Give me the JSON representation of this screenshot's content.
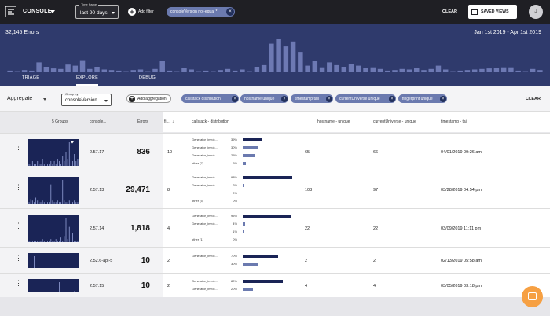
{
  "topbar": {
    "app_name": "CONSOLE",
    "timeframe_label": "Time frame",
    "timeframe_value": "last 90 days",
    "add_filter": "Add filter",
    "filter_chip": "consoleVersion not-equal *",
    "clear": "CLEAR",
    "saved_views": "SAVED VIEWS",
    "avatar_initial": "J"
  },
  "hero": {
    "error_count": "32,145 Errors",
    "date_range": "Jan 1st 2019 - Apr 1st 2019",
    "histogram": [
      3,
      2,
      4,
      3,
      18,
      10,
      7,
      6,
      14,
      12,
      22,
      6,
      10,
      5,
      4,
      3,
      2,
      4,
      5,
      2,
      6,
      20,
      3,
      2,
      8,
      5,
      2,
      3,
      2,
      4,
      6,
      3,
      5,
      2,
      10,
      13,
      52,
      60,
      47,
      56,
      37,
      12,
      20,
      9,
      18,
      13,
      10,
      15,
      12,
      8,
      9,
      6,
      3,
      4,
      6,
      5,
      8,
      4,
      6,
      12,
      5,
      2,
      3,
      4,
      5,
      6,
      7,
      8,
      9,
      9,
      3,
      2,
      6,
      4
    ]
  },
  "tabs": [
    "TRIAGE",
    "EXPLORE",
    "DEBUG"
  ],
  "toolbar": {
    "aggregate": "Aggregate",
    "group_by_label": "Group by",
    "group_by_value": "consoleVersion",
    "add_aggregation": "Add aggregation",
    "chips": [
      "callstack distribution",
      "hostname unique",
      "timestamp tail",
      "currentUniverse unique",
      "fingerprint unique"
    ],
    "clear": "CLEAR"
  },
  "columns": {
    "groups": "5 Groups",
    "version": "console...",
    "errors": "Errors",
    "f": "fi...",
    "callstack": "callstack - distribution",
    "hostname": "hostname - unique",
    "universe": "currentUniverse - unique",
    "timestamp": "timestamp - tail"
  },
  "rows": [
    {
      "version": "2.57.17",
      "errors": "836",
      "f": "10",
      "dist": [
        {
          "label": "Generator_invok...",
          "pct": "39%",
          "v": 39
        },
        {
          "label": "Generator_invok...",
          "pct": "30%",
          "v": 30
        },
        {
          "label": "Generator_invok...",
          "pct": "25%",
          "v": 25
        },
        {
          "label": "other (7)",
          "pct": "6%",
          "v": 6
        }
      ],
      "hostname": "65",
      "universe": "66",
      "timestamp": "04/01/2019 09:26 am",
      "spark": [
        1,
        1,
        2,
        1,
        1,
        2,
        1,
        1,
        3,
        1,
        2,
        1,
        1,
        2,
        1,
        2,
        1,
        3,
        2,
        1,
        4,
        2,
        6,
        3,
        10,
        4,
        2,
        5,
        2,
        3
      ]
    },
    {
      "version": "2.57.13",
      "errors": "29,471",
      "f": "8",
      "dist": [
        {
          "label": "Generator_invok...",
          "pct": "98%",
          "v": 98
        },
        {
          "label": "Generator_invok...",
          "pct": "2%",
          "v": 2
        },
        {
          "label": "",
          "pct": "0%",
          "v": 0
        },
        {
          "label": "other (5)",
          "pct": "0%",
          "v": 0
        }
      ],
      "hostname": "103",
      "universe": "97",
      "timestamp": "03/28/2019 04:54 pm",
      "spark": [
        1,
        3,
        2,
        1,
        4,
        2,
        1,
        1,
        2,
        1,
        2,
        1,
        1,
        13,
        2,
        1,
        1,
        2,
        1,
        1,
        16,
        2,
        1,
        1,
        2,
        2,
        1,
        2,
        1,
        1
      ]
    },
    {
      "version": "2.57.14",
      "errors": "1,818",
      "f": "4",
      "dist": [
        {
          "label": "Generator_invok...",
          "pct": "95%",
          "v": 95
        },
        {
          "label": "Generator_invok...",
          "pct": "4%",
          "v": 4
        },
        {
          "label": "",
          "pct": "1%",
          "v": 1
        },
        {
          "label": "other (1)",
          "pct": "0%",
          "v": 0
        }
      ],
      "hostname": "22",
      "universe": "22",
      "timestamp": "03/09/2019 11:11 pm",
      "spark": [
        1,
        1,
        1,
        1,
        1,
        1,
        1,
        1,
        2,
        1,
        1,
        1,
        1,
        2,
        1,
        1,
        2,
        1,
        1,
        3,
        1,
        4,
        16,
        2,
        10,
        3,
        6,
        1,
        1,
        1
      ]
    },
    {
      "version": "2.52.6-api-5",
      "errors": "10",
      "f": "2",
      "dist": [
        {
          "label": "Generator_invok...",
          "pct": "70%",
          "v": 70
        },
        {
          "label": "",
          "pct": "30%",
          "v": 30
        }
      ],
      "hostname": "2",
      "universe": "2",
      "timestamp": "02/13/2019 05:58 am",
      "spark": [
        0,
        0,
        0,
        16,
        0,
        0,
        0,
        0,
        0,
        0,
        0,
        0,
        0,
        0,
        0,
        0,
        0,
        0,
        0,
        0,
        0,
        0,
        0,
        0,
        0,
        0,
        0,
        0,
        0,
        0
      ]
    },
    {
      "version": "2.57.15",
      "errors": "10",
      "f": "2",
      "dist": [
        {
          "label": "Generator_invok...",
          "pct": "80%",
          "v": 80
        },
        {
          "label": "Generator_invok...",
          "pct": "20%",
          "v": 20
        }
      ],
      "hostname": "4",
      "universe": "4",
      "timestamp": "03/05/2019 03:18 pm",
      "spark": [
        0,
        0,
        0,
        0,
        0,
        0,
        0,
        0,
        0,
        0,
        0,
        0,
        0,
        0,
        0,
        0,
        0,
        0,
        16,
        0,
        0,
        0,
        0,
        0,
        0,
        0,
        0,
        2,
        0,
        0
      ]
    }
  ],
  "colors": {
    "nav": "#1f1f24",
    "hero": "#2f3a6c",
    "chip": "#6b7aaf",
    "bar_primary": "#1a2456",
    "bar_secondary": "#6b7aaf",
    "chat": "#f6a043"
  }
}
